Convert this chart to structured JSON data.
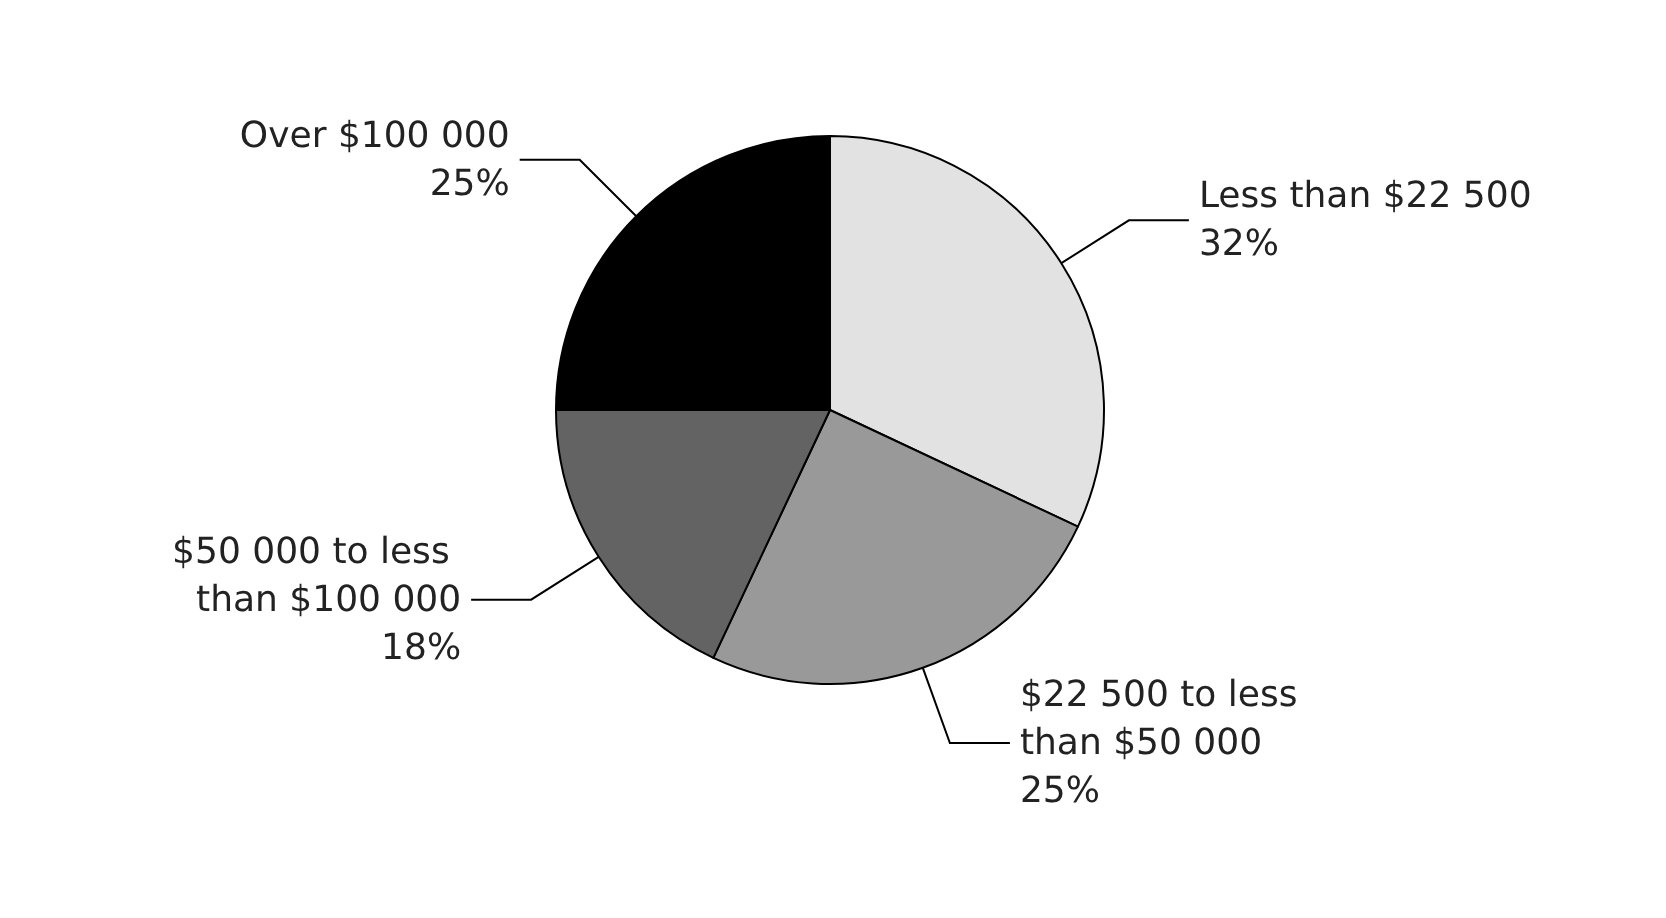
{
  "chart_data": {
    "type": "pie",
    "categories": [
      "Less than $22 500",
      "$22 500 to less than $50 000",
      "$50 000 to less than $100 000",
      "Over $100 000"
    ],
    "values": [
      32,
      25,
      18,
      25
    ],
    "value_labels": [
      "32%",
      "25%",
      "18%",
      "25%"
    ],
    "colors": [
      "#e2e2e2",
      "#999999",
      "#636363",
      "#000000"
    ],
    "legend": false
  }
}
